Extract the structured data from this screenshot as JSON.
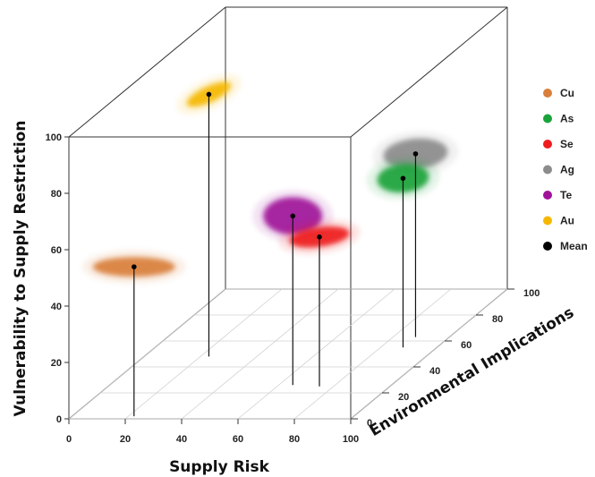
{
  "chart_data": {
    "type": "scatter",
    "projection": "3d",
    "xlabel": "Supply Risk",
    "ylabel": "Environmental Implications",
    "zlabel": "Vulnerability to Supply Restriction",
    "xlim": [
      0,
      100
    ],
    "ylim": [
      0,
      100
    ],
    "zlim": [
      0,
      100
    ],
    "x_ticks": [
      "0",
      "20",
      "40",
      "60",
      "80",
      "100"
    ],
    "y_ticks": [
      "0",
      "20",
      "40",
      "60",
      "80",
      "100"
    ],
    "z_ticks": [
      "0",
      "20",
      "40",
      "60",
      "80",
      "100"
    ],
    "legend_position": "right",
    "series": [
      {
        "name": "Cu",
        "color": "#d97f3a",
        "mean": {
          "x": 22,
          "y": 2,
          "z": 53
        }
      },
      {
        "name": "As",
        "color": "#1aa33a",
        "mean": {
          "x": 88,
          "y": 55,
          "z": 60
        }
      },
      {
        "name": "Se",
        "color": "#ee1c1c",
        "mean": {
          "x": 75,
          "y": 25,
          "z": 53
        }
      },
      {
        "name": "Ag",
        "color": "#8c8c8c",
        "mean": {
          "x": 88,
          "y": 63,
          "z": 65
        }
      },
      {
        "name": "Te",
        "color": "#a0129a",
        "mean": {
          "x": 65,
          "y": 26,
          "z": 60
        }
      },
      {
        "name": "Au",
        "color": "#f5b800",
        "mean": {
          "x": 23,
          "y": 48,
          "z": 93
        }
      },
      {
        "name": "Mean",
        "color": "#000000"
      }
    ]
  }
}
